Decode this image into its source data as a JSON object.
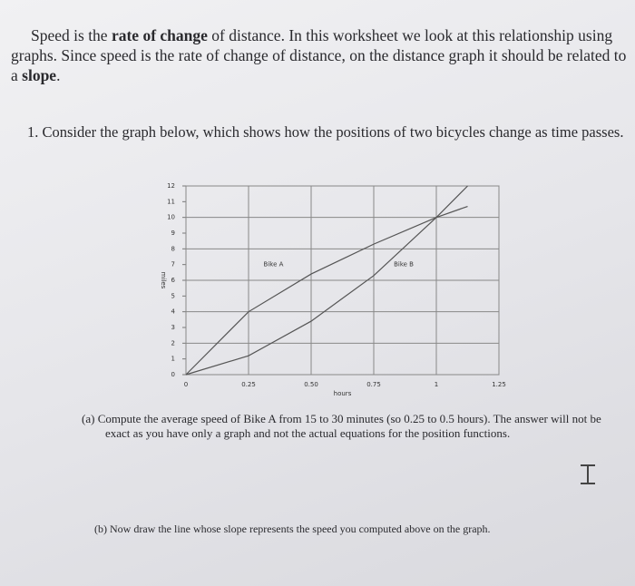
{
  "intro": {
    "segments": [
      "Speed is the ",
      "rate of change",
      " of distance. In this worksheet we look at this relationship using graphs. Since speed is the rate of change of distance, on the distance graph it should be related to a ",
      "slope",
      "."
    ]
  },
  "question_1": {
    "number": "1.",
    "text": "Consider the graph below, which shows how the positions of two bicycles change as time passes.",
    "graph": {
      "type": "line",
      "x_label": "hours",
      "y_label": "miles",
      "x": [
        0,
        0.25,
        0.5,
        0.75,
        1,
        1.125
      ],
      "series": [
        {
          "name": "Bike A",
          "color": "#555555",
          "values": [
            0,
            4,
            6.4,
            8.3,
            10,
            10.7
          ]
        },
        {
          "name": "Bike B",
          "color": "#555555",
          "values": [
            0,
            1.2,
            3.4,
            6.3,
            10,
            12
          ]
        }
      ],
      "xlim": [
        0,
        1.25
      ],
      "ylim": [
        0,
        12
      ],
      "xticks": [
        0,
        0.25,
        {
          "value": 0.5,
          "label": "0.50"
        },
        0.75,
        1,
        1.25
      ],
      "yticks": [
        0,
        1,
        2,
        3,
        4,
        5,
        6,
        7,
        8,
        9,
        10,
        11,
        12
      ],
      "grid": true
    },
    "part_a": {
      "label": "(a)",
      "text": "Compute the average speed of Bike A from 15 to 30 minutes (so 0.25 to 0.5 hours). The answer will not be exact as you have only a graph and not the actual equations for the position functions."
    },
    "part_b": {
      "label": "(b)",
      "text": "Now draw the line whose slope represents the speed you computed above on the graph."
    }
  }
}
